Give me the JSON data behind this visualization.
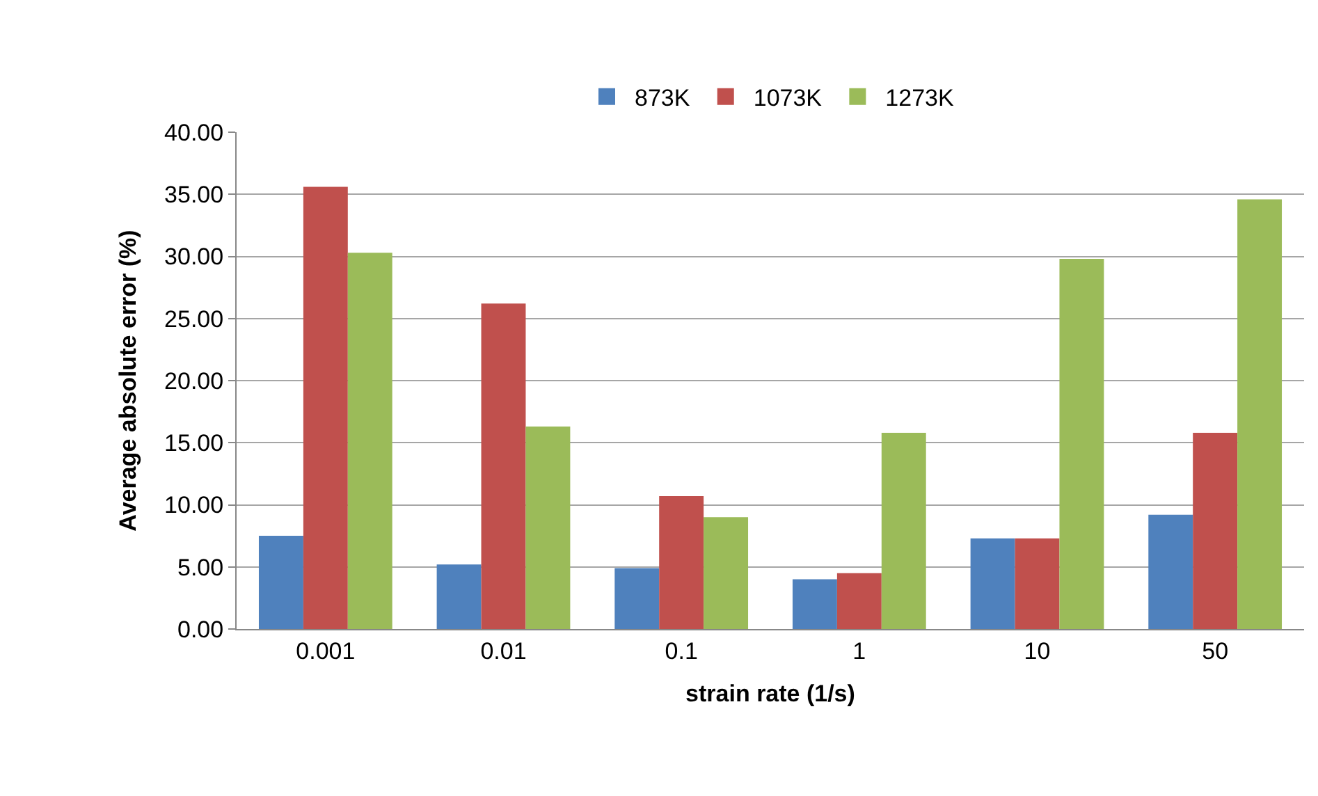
{
  "chart_data": {
    "type": "bar",
    "xlabel": "strain rate (1/s)",
    "ylabel": "Average absolute error (%)",
    "categories": [
      "0.001",
      "0.01",
      "0.1",
      "1",
      "10",
      "50"
    ],
    "series": [
      {
        "name": "873K",
        "color": "#4f81bd",
        "values": [
          7.5,
          5.2,
          4.9,
          4.0,
          7.3,
          9.2
        ]
      },
      {
        "name": "1073K",
        "color": "#c0504d",
        "values": [
          35.6,
          26.2,
          10.7,
          4.5,
          7.3,
          15.8
        ]
      },
      {
        "name": "1273K",
        "color": "#9bbb59",
        "values": [
          30.3,
          16.3,
          9.0,
          15.8,
          29.8,
          34.6
        ]
      }
    ],
    "ylim": [
      0,
      40
    ],
    "yticks": [
      {
        "value": 0,
        "label": "0.00"
      },
      {
        "value": 5,
        "label": "5.00"
      },
      {
        "value": 10,
        "label": "10.00"
      },
      {
        "value": 15,
        "label": "15.00"
      },
      {
        "value": 20,
        "label": "20.00"
      },
      {
        "value": 25,
        "label": "25.00"
      },
      {
        "value": 30,
        "label": "30.00"
      },
      {
        "value": 35,
        "label": "35.00"
      },
      {
        "value": 40,
        "label": "40.00"
      }
    ],
    "grid": "y",
    "legend": "top"
  }
}
